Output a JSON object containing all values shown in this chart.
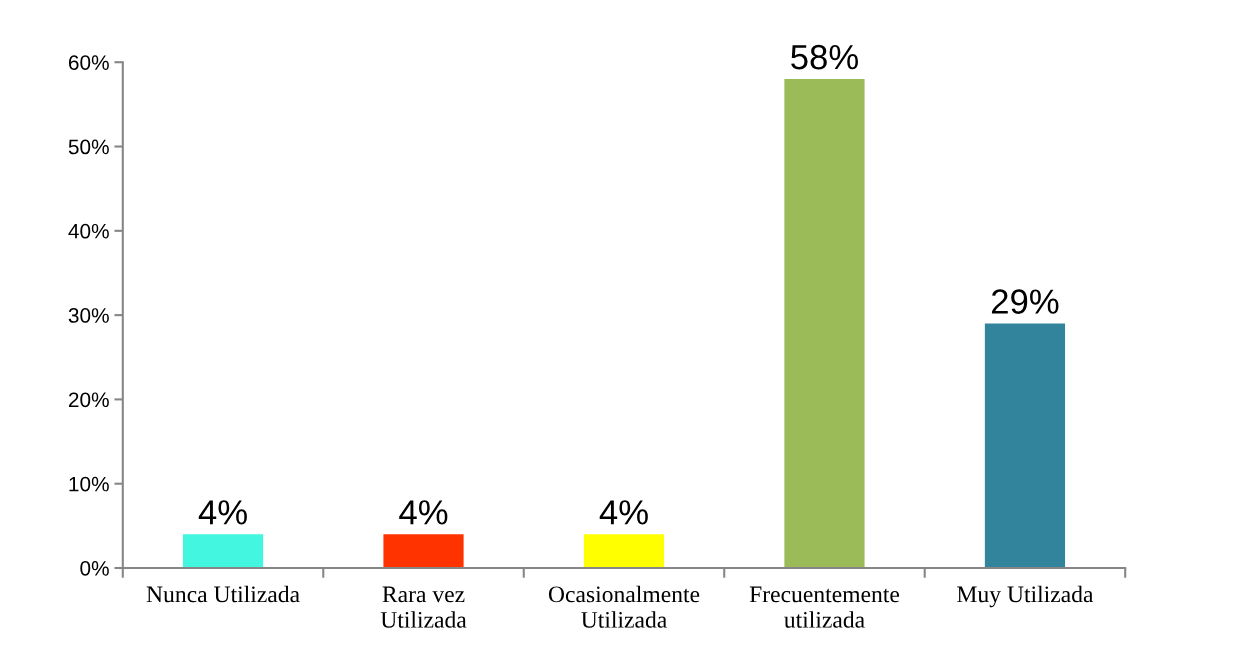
{
  "chart_data": {
    "type": "bar",
    "categories": [
      "Nunca Utilizada",
      "Rara vez\nUtilizada",
      "Ocasionalmente\nUtilizada",
      "Frecuentemente\nutilizada",
      "Muy Utilizada"
    ],
    "values": [
      4,
      4,
      4,
      58,
      29
    ],
    "colors": [
      "#43f6e0",
      "#ff3300",
      "#ffff00",
      "#9bbb59",
      "#31849b"
    ],
    "value_labels": [
      "4%",
      "4%",
      "4%",
      "58%",
      "29%"
    ],
    "ylim": [
      0,
      60
    ],
    "yticks": [
      {
        "value": 0,
        "label": "0%"
      },
      {
        "value": 10,
        "label": "10%"
      },
      {
        "value": 20,
        "label": "20%"
      },
      {
        "value": 30,
        "label": "30%"
      },
      {
        "value": 40,
        "label": "40%"
      },
      {
        "value": 50,
        "label": "50%"
      },
      {
        "value": 60,
        "label": "60%"
      }
    ],
    "grid": false
  }
}
